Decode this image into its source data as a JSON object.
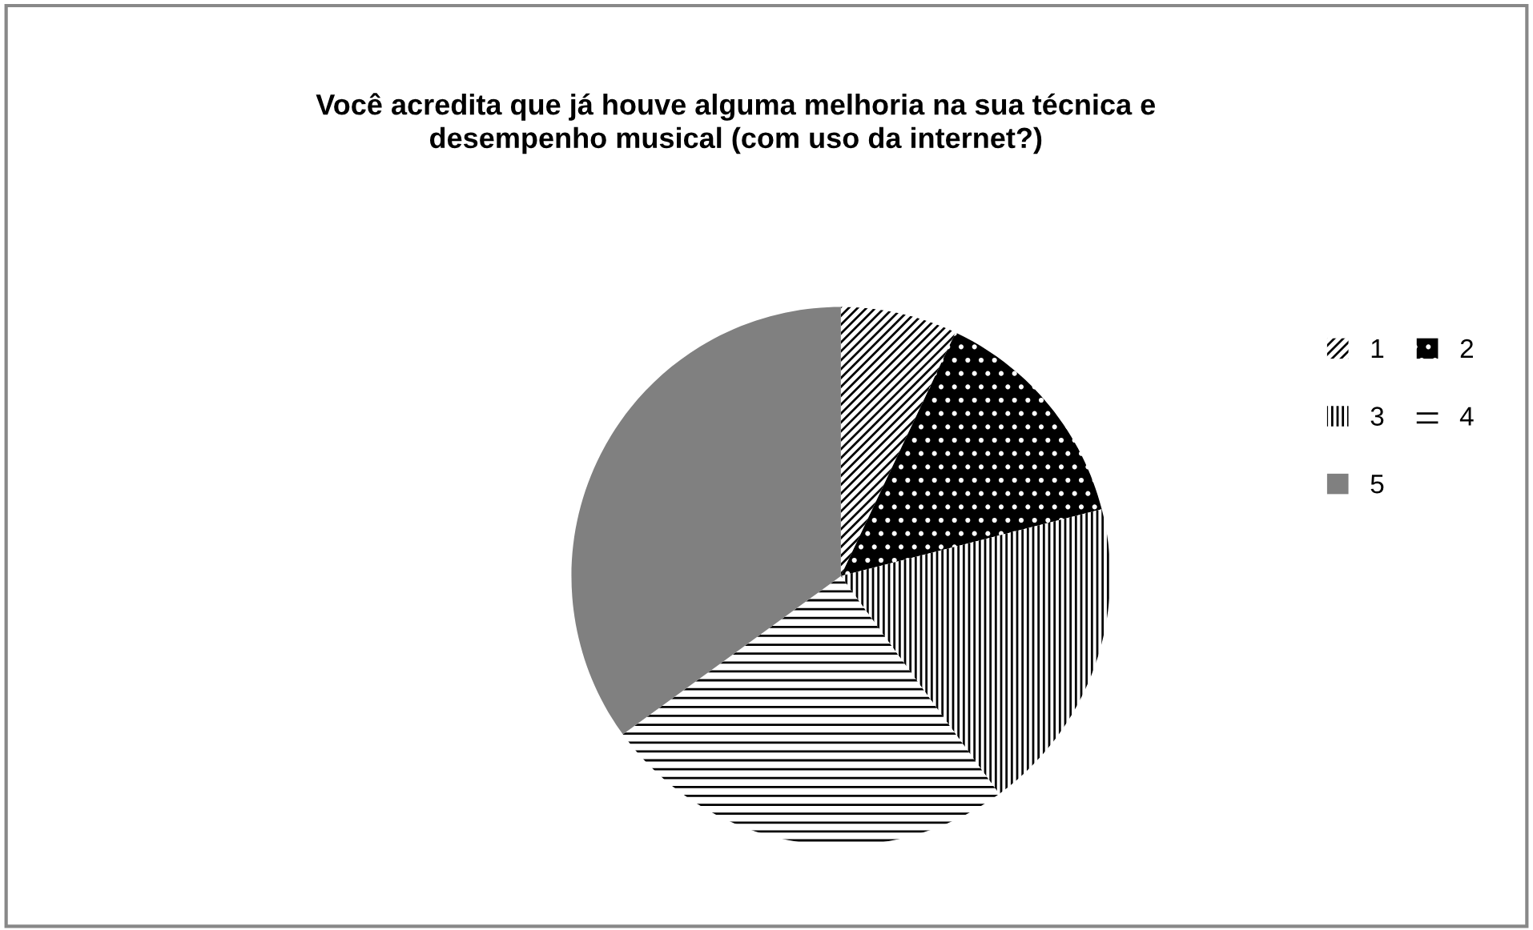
{
  "chart_data": {
    "type": "pie",
    "title": "Você acredita que já houve alguma melhoria na sua técnica e\ndesempenho musical (com uso da internet?)",
    "categories": [
      "1",
      "2",
      "3",
      "4",
      "5"
    ],
    "values": [
      7,
      14,
      19,
      25,
      35
    ],
    "colors": [
      "#ffffff",
      "#000000",
      "#ffffff",
      "#ffffff",
      "#808080"
    ],
    "legend": "right"
  }
}
